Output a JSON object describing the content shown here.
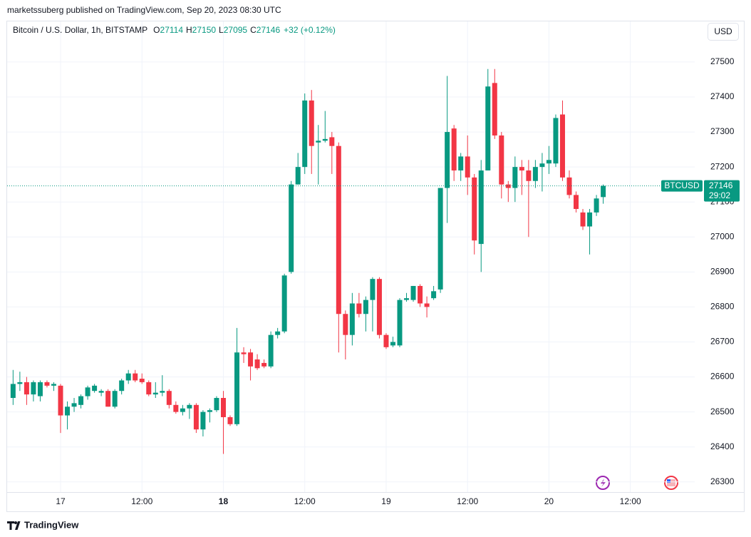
{
  "header": {
    "publisher": "marketssuberg published on TradingView.com, Sep 20, 2023 08:30 UTC"
  },
  "chart_data": {
    "type": "candlestick",
    "title": "Bitcoin / U.S. Dollar, 1h, BITSTAMP",
    "legend": [
      {
        "label": "O",
        "value": 27114
      },
      {
        "label": "H",
        "value": 27150
      },
      {
        "label": "L",
        "value": 27095
      },
      {
        "label": "C",
        "value": 27146
      }
    ],
    "change": "+32 (+0.12%)",
    "currency": "USD",
    "symbol": "BTCUSD",
    "countdown": "29:02",
    "up_color": "#089981",
    "down_color": "#f23645",
    "grid": true,
    "categories": [
      null,
      null,
      null,
      null,
      null,
      null,
      null,
      "17",
      null,
      null,
      null,
      null,
      null,
      null,
      null,
      null,
      null,
      null,
      null,
      "12:00",
      null,
      null,
      null,
      null,
      null,
      null,
      null,
      null,
      null,
      null,
      null,
      "18",
      null,
      null,
      null,
      null,
      null,
      null,
      null,
      null,
      null,
      null,
      null,
      "12:00",
      null,
      null,
      null,
      null,
      null,
      null,
      null,
      null,
      null,
      null,
      null,
      "19",
      null,
      null,
      null,
      null,
      null,
      null,
      null,
      null,
      null,
      null,
      null,
      "12:00",
      null,
      null,
      null,
      null,
      null,
      null,
      null,
      null,
      null,
      null,
      null,
      "20",
      null,
      null,
      null,
      null,
      null,
      null,
      null,
      null,
      null,
      null,
      null,
      "12:00",
      null,
      null,
      null,
      null,
      null,
      null,
      null,
      null,
      null
    ],
    "open": [
      26540,
      26580,
      26585,
      26550,
      26545,
      26585,
      26575,
      26575,
      26490,
      26515,
      26520,
      26545,
      26560,
      26555,
      26560,
      26515,
      26560,
      26590,
      26610,
      26595,
      26585,
      26550,
      26555,
      26560,
      26520,
      26500,
      26510,
      26520,
      26450,
      26500,
      26505,
      26540,
      26485,
      26465,
      26670,
      26670,
      26650,
      26640,
      26630,
      26720,
      26730,
      26900,
      27150,
      27200,
      27390,
      27270,
      27275,
      27285,
      27260,
      26780,
      26720,
      26810,
      26780,
      26820,
      26880,
      26720,
      26690,
      26690,
      26820,
      26820,
      26860,
      26810,
      26825,
      26850,
      27140,
      27310,
      27190,
      27230,
      27170,
      26980,
      27190,
      27440,
      27290,
      27150,
      27140,
      27200,
      27190,
      27160,
      27200,
      27210,
      27210,
      27350,
      27170,
      27120,
      27070,
      27030,
      27070,
      27114,
      null,
      null,
      null,
      null,
      null,
      null,
      null,
      null,
      null,
      null,
      null,
      null,
      null
    ],
    "high": [
      26620,
      26615,
      26600,
      26590,
      26590,
      26590,
      26585,
      26580,
      26530,
      26540,
      26550,
      26575,
      26580,
      26565,
      26565,
      26565,
      26595,
      26620,
      26620,
      26610,
      26590,
      26585,
      26605,
      26565,
      26530,
      26520,
      26525,
      26525,
      26505,
      26510,
      26545,
      26560,
      26490,
      26740,
      26685,
      26680,
      26665,
      26650,
      26730,
      26740,
      26895,
      27160,
      27240,
      27410,
      27420,
      27320,
      27360,
      27300,
      27270,
      26790,
      26840,
      26840,
      26830,
      26885,
      26885,
      26725,
      26715,
      26825,
      26840,
      26860,
      26865,
      26830,
      26860,
      27140,
      27460,
      27320,
      27240,
      27290,
      27180,
      27220,
      27480,
      27480,
      27300,
      27160,
      27230,
      27220,
      27220,
      27220,
      27240,
      27260,
      27350,
      27390,
      27190,
      27130,
      27080,
      27080,
      27120,
      27150,
      null,
      null,
      null,
      null,
      null,
      null,
      null,
      null,
      null,
      null,
      null,
      null,
      null
    ],
    "low": [
      26520,
      26560,
      26520,
      26530,
      26530,
      26570,
      26560,
      26440,
      26450,
      26500,
      26510,
      26535,
      26555,
      26545,
      26515,
      26510,
      26550,
      26580,
      26585,
      26580,
      26545,
      26540,
      26545,
      26510,
      26495,
      26490,
      26480,
      26440,
      26430,
      26470,
      26500,
      26380,
      26460,
      26460,
      26640,
      26590,
      26620,
      26625,
      26625,
      26710,
      26725,
      26895,
      27150,
      27180,
      27180,
      27150,
      27270,
      27180,
      26670,
      26650,
      26690,
      26770,
      26730,
      26730,
      26710,
      26680,
      26685,
      26685,
      26815,
      26815,
      26800,
      26770,
      26820,
      26840,
      27040,
      27160,
      27160,
      27120,
      26950,
      26900,
      27190,
      27280,
      27110,
      27100,
      27100,
      27120,
      27000,
      27140,
      27130,
      27180,
      27200,
      27160,
      27110,
      27070,
      27020,
      26950,
      27060,
      27095,
      null,
      null,
      null,
      null,
      null,
      null,
      null,
      null,
      null,
      null,
      null,
      null,
      null
    ],
    "close": [
      26580,
      26585,
      26550,
      26585,
      26585,
      26575,
      26580,
      26490,
      26515,
      26525,
      26545,
      26570,
      26575,
      26560,
      26515,
      26560,
      26590,
      26610,
      26590,
      26585,
      26550,
      26555,
      26560,
      26520,
      26500,
      26510,
      26520,
      26450,
      26500,
      26505,
      26540,
      26485,
      26465,
      26670,
      26665,
      26630,
      26625,
      26630,
      26720,
      26730,
      26890,
      27150,
      27200,
      27390,
      27260,
      27275,
      27280,
      27260,
      26780,
      26720,
      26810,
      26780,
      26820,
      26880,
      26720,
      26685,
      26700,
      26820,
      26825,
      26860,
      26810,
      26800,
      26845,
      27140,
      27300,
      27190,
      27230,
      27170,
      26990,
      27190,
      27430,
      27290,
      27150,
      27140,
      27200,
      27190,
      27160,
      27200,
      27210,
      27220,
      27340,
      27170,
      27120,
      27080,
      27030,
      27070,
      27110,
      27146,
      null,
      null,
      null,
      null,
      null,
      null,
      null,
      null,
      null,
      null,
      null,
      null,
      null
    ],
    "ylim": [
      26271,
      27616
    ],
    "yticks": [
      26300,
      26400,
      26500,
      26600,
      26700,
      26800,
      26900,
      27000,
      27100,
      27200,
      27300,
      27400,
      27500
    ]
  },
  "footer": {
    "brand": "TradingView"
  }
}
